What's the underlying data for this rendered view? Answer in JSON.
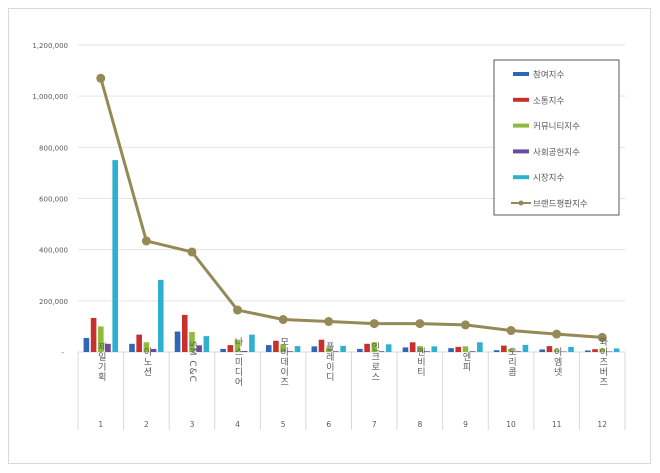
{
  "chart_data": {
    "type": "bar",
    "title": "",
    "xlabel": "",
    "ylabel": "",
    "ylim": [
      0,
      1200000
    ],
    "yticks": [
      0,
      200000,
      400000,
      600000,
      800000,
      1000000,
      1200000
    ],
    "ytick_labels": [
      "-",
      "200,000",
      "400,000",
      "600,000",
      "800,000",
      "1,000,000",
      "1,200,000"
    ],
    "grid": true,
    "legend_position": "top-right",
    "categories": [
      "제일기획",
      "이노션",
      "SM C&C",
      "나스미디어",
      "모비데이즈",
      "플레이디",
      "인크로스",
      "엔비티",
      "엔피",
      "오리콤",
      "이엠넷",
      "와이즈버즈"
    ],
    "ranks": [
      "1",
      "2",
      "3",
      "4",
      "5",
      "6",
      "7",
      "8",
      "9",
      "10",
      "11",
      "12"
    ],
    "series": [
      {
        "name": "참여지수",
        "type": "bar",
        "color": "#2e66b8",
        "values": [
          55000,
          32000,
          80000,
          12000,
          27000,
          22000,
          12000,
          18000,
          15000,
          7000,
          10000,
          6000
        ]
      },
      {
        "name": "소통지수",
        "type": "bar",
        "color": "#c8302e",
        "values": [
          133000,
          68000,
          145000,
          27000,
          44000,
          48000,
          32000,
          38000,
          20000,
          25000,
          23000,
          11000
        ]
      },
      {
        "name": "커뮤니티지수",
        "type": "bar",
        "color": "#8dbb3c",
        "values": [
          100000,
          38000,
          78000,
          48000,
          28000,
          17000,
          38000,
          23000,
          22000,
          12000,
          10000,
          13000
        ]
      },
      {
        "name": "사회공헌지수",
        "type": "bar",
        "color": "#6c4a9e",
        "values": [
          32000,
          12000,
          26000,
          4000,
          3000,
          3000,
          3000,
          3000,
          3000,
          3000,
          2000,
          2000
        ]
      },
      {
        "name": "시장지수",
        "type": "bar",
        "color": "#2fb0cf",
        "values": [
          750000,
          282000,
          62000,
          68000,
          23000,
          24000,
          30000,
          22000,
          38000,
          28000,
          20000,
          14000
        ]
      },
      {
        "name": "브랜드평판지수",
        "type": "line",
        "color": "#958a55",
        "values": [
          1070000,
          434000,
          391000,
          164000,
          127000,
          119000,
          111000,
          111000,
          106000,
          84000,
          70000,
          57000
        ]
      }
    ]
  }
}
